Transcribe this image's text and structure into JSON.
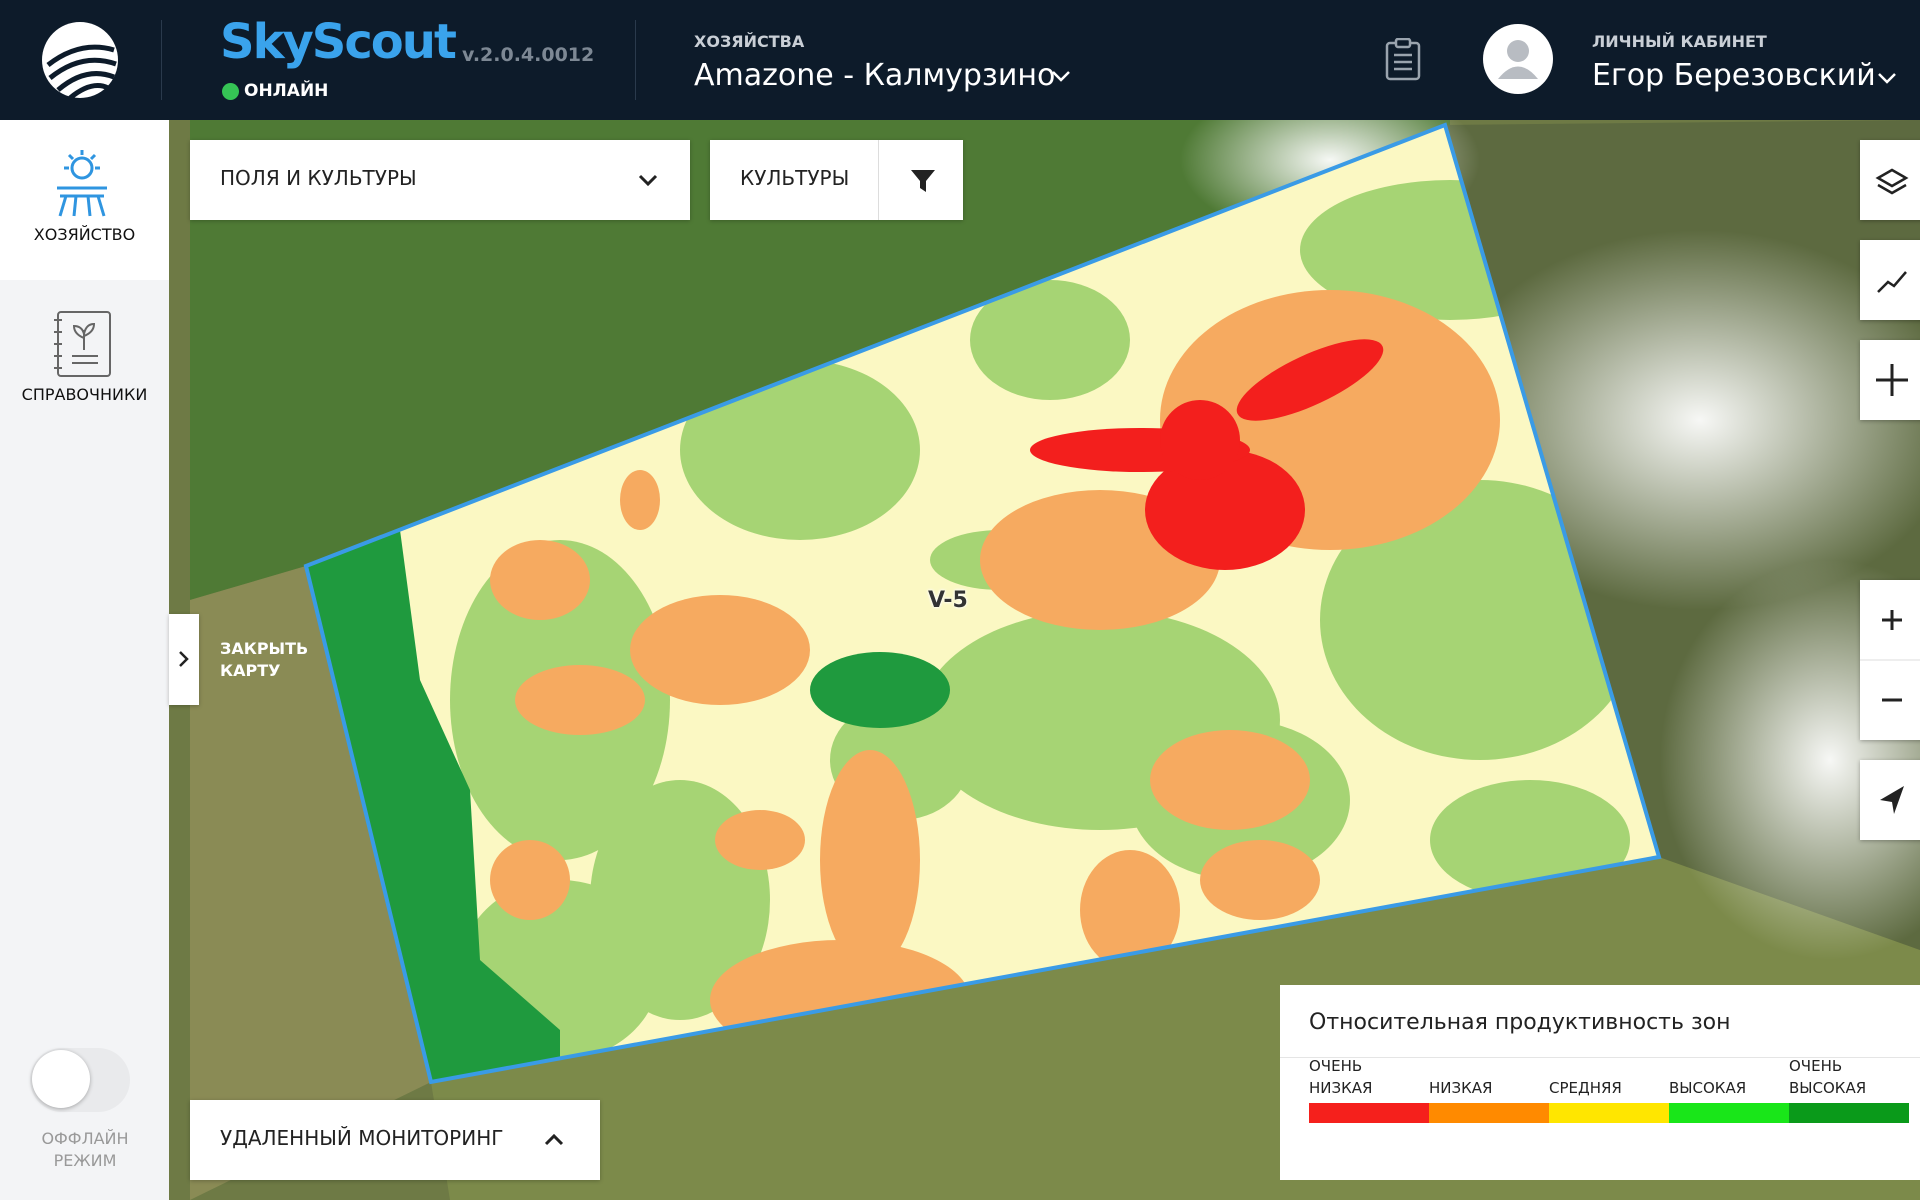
{
  "header": {
    "brand": "SkyScout",
    "version": "v.2.0.4.0012",
    "status": "ОНЛАЙН",
    "farm_label": "ХОЗЯЙСТВА",
    "farm_name": "Amazone - Калмурзино",
    "account_label": "ЛИЧНЫЙ КАБИНЕТ",
    "user_name": "Егор Березовский"
  },
  "sidebar": {
    "items": [
      "ХОЗЯЙСТВО",
      "СПРАВОЧНИКИ"
    ],
    "offline": "ОФФЛАЙН РЕЖИМ"
  },
  "map": {
    "fields_dropdown": "ПОЛЯ И КУЛЬТУРЫ",
    "crops_filter": "КУЛЬТУРЫ",
    "close_map": "ЗАКРЫТЬ КАРТУ",
    "field_label": "V-5",
    "monitoring": "УДАЛЕННЫЙ МОНИТОРИНГ"
  },
  "legend": {
    "title": "Относительная продуктивность зон",
    "items": [
      {
        "label": "ОЧЕНЬ НИЗКАЯ",
        "color": "#f5201c"
      },
      {
        "label": "НИЗКАЯ",
        "color": "#ff8a00"
      },
      {
        "label": "СРЕДНЯЯ",
        "color": "#ffe600"
      },
      {
        "label": "ВЫСОКАЯ",
        "color": "#19e619"
      },
      {
        "label": "ОЧЕНЬ ВЫСОКАЯ",
        "color": "#0a9a1a"
      }
    ]
  }
}
